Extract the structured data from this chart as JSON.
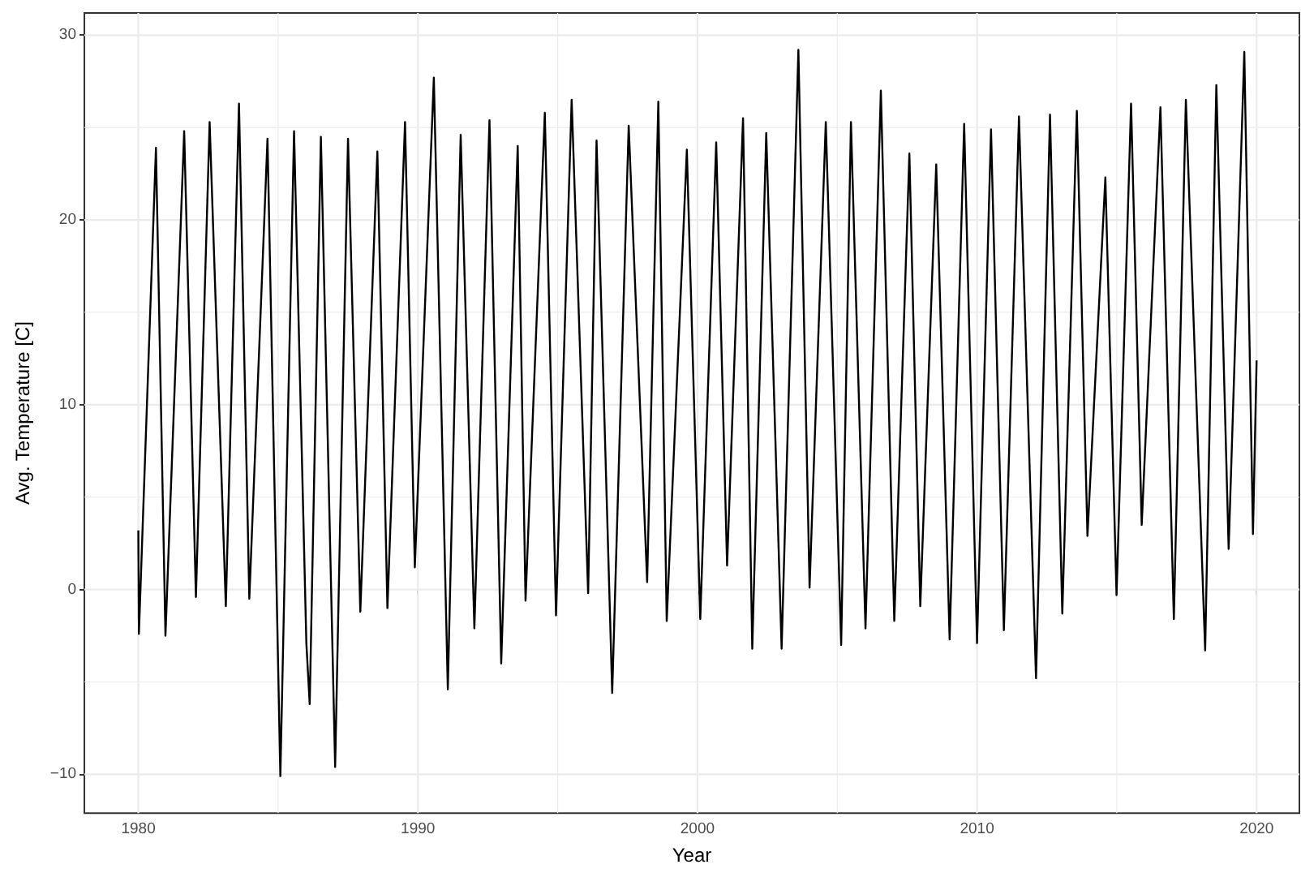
{
  "chart_data": {
    "type": "line",
    "xlabel": "Year",
    "ylabel": "Avg. Temperature [C]",
    "xlim": [
      1978.07,
      2021.53
    ],
    "xticks": [
      1980,
      1990,
      2000,
      2010,
      2020
    ],
    "ylim": [
      -12.1,
      31.2
    ],
    "yticks": [
      {
        "value": -10,
        "label": "−10"
      },
      0,
      10,
      20,
      30
    ],
    "grid": true,
    "marker": "none",
    "line_style": "solid",
    "series": [
      {
        "color": "#000000",
        "x": [
          1980.0,
          1980.02,
          1980.63,
          1980.97,
          1981.64,
          1982.06,
          1982.55,
          1983.13,
          1983.6,
          1983.97,
          1984.62,
          1985.08,
          1985.57,
          1986.01,
          1986.13,
          1986.53,
          1987.04,
          1987.5,
          1987.94,
          1988.55,
          1988.91,
          1989.54,
          1989.89,
          1990.57,
          1991.07,
          1991.53,
          1992.02,
          1992.56,
          1992.98,
          1993.57,
          1993.85,
          1994.54,
          1994.94,
          1995.5,
          1996.09,
          1996.39,
          1996.95,
          1997.54,
          1998.2,
          1998.6,
          1998.9,
          1999.62,
          2000.1,
          2000.67,
          2001.06,
          2001.63,
          2001.96,
          2002.46,
          2003.01,
          2003.61,
          2004.01,
          2004.59,
          2005.14,
          2005.49,
          2006.01,
          2006.56,
          2007.04,
          2007.58,
          2007.97,
          2008.54,
          2009.02,
          2009.54,
          2010.0,
          2010.5,
          2010.96,
          2011.5,
          2012.11,
          2012.61,
          2013.05,
          2013.57,
          2013.95,
          2014.59,
          2014.99,
          2015.51,
          2015.89,
          2016.56,
          2017.04,
          2017.47,
          2018.16,
          2018.56,
          2019.0,
          2019.56,
          2019.87,
          2020.0
        ],
        "values": [
          3.2,
          -2.4,
          23.9,
          -2.5,
          24.8,
          -0.4,
          25.3,
          -0.9,
          26.3,
          -0.5,
          24.4,
          -10.1,
          24.8,
          -2.9,
          -6.2,
          24.5,
          -9.6,
          24.4,
          -1.2,
          23.7,
          -1.0,
          25.3,
          1.2,
          27.7,
          -5.4,
          24.6,
          -2.1,
          25.4,
          -4.0,
          24.0,
          -0.6,
          25.8,
          -1.4,
          26.5,
          -0.2,
          24.3,
          -5.6,
          25.1,
          0.4,
          26.4,
          -1.7,
          23.8,
          -1.6,
          24.2,
          1.3,
          25.5,
          -3.2,
          24.7,
          -3.2,
          29.2,
          0.1,
          25.3,
          -3.0,
          25.3,
          -2.1,
          27.0,
          -1.7,
          23.6,
          -0.9,
          23.0,
          -2.7,
          25.2,
          -2.9,
          24.9,
          -2.2,
          25.6,
          -4.8,
          25.7,
          -1.3,
          25.9,
          2.9,
          22.3,
          -0.3,
          26.3,
          3.5,
          26.1,
          -1.6,
          26.5,
          -3.3,
          27.3,
          2.2,
          29.1,
          3.0,
          12.4
        ]
      }
    ]
  }
}
